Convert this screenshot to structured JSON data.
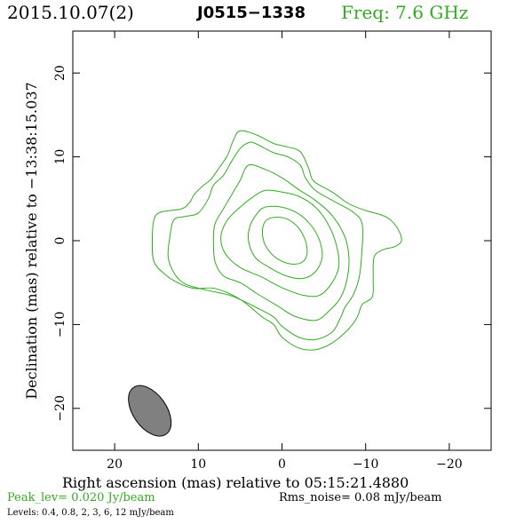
{
  "header": {
    "date": "2015.10.07(2)",
    "source": "J0515−1338",
    "freq": "Freq: 7.6 GHz"
  },
  "footer": {
    "peak": "Peak_lev=  0.020 Jy/beam",
    "rms": "Rms_noise= 0.08 mJy/beam",
    "levels": "Levels: 0.4, 0.8,   2,   3,   6,  12 mJy/beam"
  },
  "colors": {
    "contour": "#33aa22",
    "beam_fill": "#808080",
    "accent_text": "#33aa22"
  },
  "chart_data": {
    "type": "contour",
    "xlabel": "Right ascension (mas) relative to 05:15:21.4880",
    "ylabel": "Declination (mas) relative to −13:38:15.037",
    "xlim": [
      25,
      -25
    ],
    "ylim": [
      -25,
      25
    ],
    "x_ticks": [
      20,
      10,
      0,
      -10,
      -20
    ],
    "y_ticks": [
      20,
      10,
      0,
      -10,
      -20
    ],
    "x_tick_labels": [
      "20",
      "10",
      "0",
      "−10",
      "−20"
    ],
    "y_tick_labels": [
      "20",
      "10",
      "0",
      "−10",
      "−20"
    ],
    "levels_mJy": [
      0.4,
      0.8,
      2,
      3,
      6,
      12
    ],
    "beam": {
      "x": 15.8,
      "y": -20.3,
      "major": 6.8,
      "minor": 4.0,
      "pa_deg": -35
    },
    "contours": [
      {
        "level": 0.4,
        "points": [
          [
            5.0,
            13.1
          ],
          [
            3.0,
            12.6
          ],
          [
            1.0,
            11.6
          ],
          [
            -0.6,
            11.2
          ],
          [
            -2.2,
            10.6
          ],
          [
            -3.2,
            8.6
          ],
          [
            -3.8,
            7.1
          ],
          [
            -6.0,
            5.8
          ],
          [
            -8.0,
            4.4
          ],
          [
            -10.0,
            3.6
          ],
          [
            -12.3,
            2.9
          ],
          [
            -13.6,
            1.8
          ],
          [
            -14.3,
            0.1
          ],
          [
            -13.5,
            -0.7
          ],
          [
            -12.0,
            -1.1
          ],
          [
            -11.0,
            -2.0
          ],
          [
            -10.9,
            -4.5
          ],
          [
            -10.8,
            -6.7
          ],
          [
            -9.6,
            -7.6
          ],
          [
            -9.0,
            -9.1
          ],
          [
            -8.0,
            -10.5
          ],
          [
            -6.0,
            -12.2
          ],
          [
            -4.0,
            -13.0
          ],
          [
            -2.0,
            -12.8
          ],
          [
            0.0,
            -11.5
          ],
          [
            1.0,
            -10.0
          ],
          [
            2.5,
            -9.0
          ],
          [
            5.0,
            -7.0
          ],
          [
            8.0,
            -5.7
          ],
          [
            10.5,
            -5.7
          ],
          [
            12.5,
            -5.0
          ],
          [
            14.0,
            -4.0
          ],
          [
            15.3,
            -2.5
          ],
          [
            15.5,
            0.0
          ],
          [
            15.3,
            2.5
          ],
          [
            14.5,
            3.4
          ],
          [
            12.0,
            3.8
          ],
          [
            11.0,
            4.6
          ],
          [
            10.5,
            5.5
          ],
          [
            9.5,
            6.5
          ],
          [
            8.5,
            7.3
          ],
          [
            7.5,
            8.7
          ],
          [
            6.5,
            10.2
          ],
          [
            5.8,
            12.0
          ]
        ]
      },
      {
        "level": 0.8,
        "points": [
          [
            3.2,
            11.6
          ],
          [
            1.0,
            10.5
          ],
          [
            -0.7,
            10.0
          ],
          [
            -2.2,
            9.0
          ],
          [
            -2.8,
            7.5
          ],
          [
            -4.0,
            6.0
          ],
          [
            -6.2,
            4.7
          ],
          [
            -8.5,
            3.4
          ],
          [
            -9.6,
            1.9
          ],
          [
            -9.5,
            -2.0
          ],
          [
            -9.2,
            -4.5
          ],
          [
            -8.5,
            -6.5
          ],
          [
            -7.5,
            -8.0
          ],
          [
            -7.0,
            -9.2
          ],
          [
            -6.0,
            -10.9
          ],
          [
            -4.0,
            -11.8
          ],
          [
            -2.0,
            -11.5
          ],
          [
            0.0,
            -10.2
          ],
          [
            1.0,
            -9.1
          ],
          [
            3.0,
            -8.0
          ],
          [
            6.0,
            -6.6
          ],
          [
            9.0,
            -5.9
          ],
          [
            11.5,
            -5.2
          ],
          [
            12.8,
            -4.0
          ],
          [
            13.6,
            -2.0
          ],
          [
            13.4,
            0.5
          ],
          [
            12.9,
            2.5
          ],
          [
            11.5,
            2.9
          ],
          [
            10.0,
            3.3
          ],
          [
            8.8,
            5.0
          ],
          [
            8.2,
            6.6
          ],
          [
            7.0,
            7.8
          ],
          [
            6.0,
            9.5
          ],
          [
            5.0,
            11.0
          ],
          [
            4.0,
            11.7
          ]
        ]
      },
      {
        "level": 2,
        "points": [
          [
            4.0,
            9.0
          ],
          [
            2.0,
            8.5
          ],
          [
            0.0,
            7.5
          ],
          [
            -2.0,
            6.1
          ],
          [
            -4.0,
            4.8
          ],
          [
            -6.0,
            3.0
          ],
          [
            -7.5,
            0.5
          ],
          [
            -8.0,
            -2.0
          ],
          [
            -7.8,
            -4.5
          ],
          [
            -7.0,
            -6.8
          ],
          [
            -5.5,
            -8.5
          ],
          [
            -4.0,
            -9.5
          ],
          [
            -1.5,
            -9.0
          ],
          [
            0.5,
            -7.8
          ],
          [
            3.0,
            -6.3
          ],
          [
            5.0,
            -5.0
          ],
          [
            7.0,
            -4.2
          ],
          [
            8.0,
            -2.5
          ],
          [
            8.2,
            0.0
          ],
          [
            8.0,
            2.0
          ],
          [
            7.0,
            3.8
          ],
          [
            6.0,
            5.5
          ],
          [
            5.0,
            7.2
          ]
        ]
      },
      {
        "level": 3,
        "points": [
          [
            2.0,
            6.0
          ],
          [
            0.0,
            5.8
          ],
          [
            -2.0,
            5.3
          ],
          [
            -4.0,
            4.0
          ],
          [
            -5.5,
            2.0
          ],
          [
            -6.5,
            -0.5
          ],
          [
            -6.8,
            -3.0
          ],
          [
            -6.0,
            -5.0
          ],
          [
            -4.5,
            -6.5
          ],
          [
            -2.5,
            -6.5
          ],
          [
            0.0,
            -5.6
          ],
          [
            2.5,
            -4.3
          ],
          [
            5.0,
            -3.2
          ],
          [
            6.8,
            -1.5
          ],
          [
            7.3,
            0.5
          ],
          [
            6.5,
            2.5
          ],
          [
            5.0,
            4.0
          ],
          [
            3.5,
            5.2
          ]
        ]
      },
      {
        "level": 6,
        "points": [
          [
            2.0,
            4.0
          ],
          [
            0.0,
            4.0
          ],
          [
            -2.0,
            3.2
          ],
          [
            -3.5,
            1.8
          ],
          [
            -4.5,
            0.0
          ],
          [
            -4.8,
            -2.0
          ],
          [
            -4.0,
            -3.7
          ],
          [
            -2.5,
            -4.5
          ],
          [
            -0.5,
            -4.2
          ],
          [
            1.5,
            -3.2
          ],
          [
            3.2,
            -2.0
          ],
          [
            4.0,
            0.0
          ],
          [
            3.8,
            1.8
          ],
          [
            3.0,
            3.2
          ]
        ]
      },
      {
        "level": 12,
        "points": [
          [
            1.8,
            2.5
          ],
          [
            0.5,
            2.8
          ],
          [
            -0.8,
            2.5
          ],
          [
            -2.0,
            1.5
          ],
          [
            -2.8,
            0.0
          ],
          [
            -3.0,
            -1.5
          ],
          [
            -2.5,
            -2.5
          ],
          [
            -1.2,
            -2.8
          ],
          [
            0.3,
            -2.3
          ],
          [
            1.5,
            -1.3
          ],
          [
            2.2,
            0.0
          ],
          [
            2.3,
            1.5
          ]
        ]
      }
    ]
  }
}
